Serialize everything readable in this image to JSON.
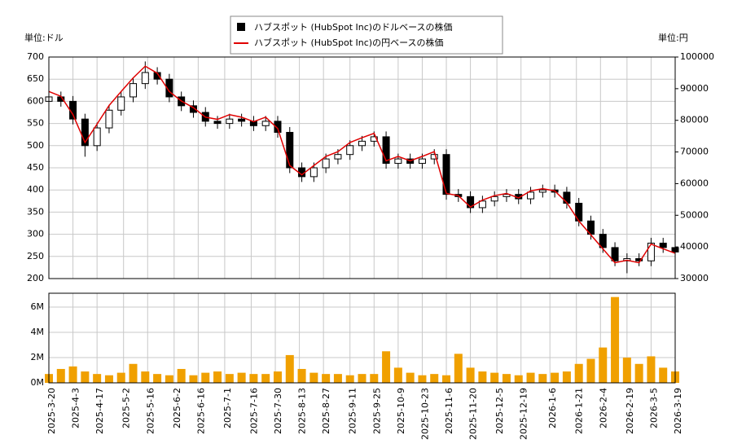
{
  "chart_data": {
    "type": "candlestick",
    "unit_left": "単位:ドル",
    "unit_right": "単位:円",
    "x": [
      "2025-03-20",
      "2025-03-27",
      "2025-04-03",
      "2025-04-10",
      "2025-04-17",
      "2025-04-24",
      "2025-05-01",
      "2025-05-08",
      "2025-05-15",
      "2025-05-22",
      "2025-05-29",
      "2025-06-05",
      "2025-06-12",
      "2025-06-19",
      "2025-06-26",
      "2025-07-03",
      "2025-07-10",
      "2025-07-17",
      "2025-07-24",
      "2025-07-31",
      "2025-08-07",
      "2025-08-14",
      "2025-08-21",
      "2025-08-28",
      "2025-09-04",
      "2025-09-11",
      "2025-09-18",
      "2025-09-25",
      "2025-10-02",
      "2025-10-09",
      "2025-10-16",
      "2025-10-23",
      "2025-10-30",
      "2025-11-06",
      "2025-11-13",
      "2025-11-20",
      "2025-11-27",
      "2025-12-04",
      "2025-12-11",
      "2025-12-18",
      "2025-12-25",
      "2026-01-01",
      "2026-01-08",
      "2026-01-15",
      "2026-01-22",
      "2026-01-29",
      "2026-02-05",
      "2026-02-12",
      "2026-02-19",
      "2026-02-26",
      "2026-03-05",
      "2026-03-12",
      "2026-03-19"
    ],
    "xlim": [
      "2025-03-20",
      "2026-03-19"
    ],
    "xticks": [
      {
        "value": "2025-03-20",
        "label": "2025-3-20"
      },
      {
        "value": "2025-04-03",
        "label": "2025-4-3"
      },
      {
        "value": "2025-04-17",
        "label": "2025-4-17"
      },
      {
        "value": "2025-05-02",
        "label": "2025-5-2"
      },
      {
        "value": "2025-05-16",
        "label": "2025-5-16"
      },
      {
        "value": "2025-06-02",
        "label": "2025-6-2"
      },
      {
        "value": "2025-06-16",
        "label": "2025-6-16"
      },
      {
        "value": "2025-07-01",
        "label": "2025-7-1"
      },
      {
        "value": "2025-07-16",
        "label": "2025-7-16"
      },
      {
        "value": "2025-07-30",
        "label": "2025-7-30"
      },
      {
        "value": "2025-08-13",
        "label": "2025-8-13"
      },
      {
        "value": "2025-08-27",
        "label": "2025-8-27"
      },
      {
        "value": "2025-09-11",
        "label": "2025-9-11"
      },
      {
        "value": "2025-09-25",
        "label": "2025-9-25"
      },
      {
        "value": "2025-10-09",
        "label": "2025-10-9"
      },
      {
        "value": "2025-10-23",
        "label": "2025-10-23"
      },
      {
        "value": "2025-11-06",
        "label": "2025-11-6"
      },
      {
        "value": "2025-11-20",
        "label": "2025-11-20"
      },
      {
        "value": "2025-12-05",
        "label": "2025-12-5"
      },
      {
        "value": "2025-12-19",
        "label": "2025-12-19"
      },
      {
        "value": "2026-01-06",
        "label": "2026-1-6"
      },
      {
        "value": "2026-01-21",
        "label": "2026-1-21"
      },
      {
        "value": "2026-02-04",
        "label": "2026-2-4"
      },
      {
        "value": "2026-02-19",
        "label": "2026-2-19"
      },
      {
        "value": "2026-03-05",
        "label": "2026-3-5"
      },
      {
        "value": "2026-03-19",
        "label": "2026-3-19"
      }
    ],
    "ylim": [
      200,
      700
    ],
    "yticks": [
      200,
      250,
      300,
      350,
      400,
      450,
      500,
      550,
      600,
      650,
      700
    ],
    "y2lim": [
      30000,
      100000
    ],
    "y2ticks": [
      30000,
      40000,
      50000,
      60000,
      70000,
      80000,
      90000,
      100000
    ],
    "grid": true,
    "series": [
      {
        "name": "ハブスポット (HubSpot Inc)のドルベースの株価",
        "color": "#000000",
        "open": [
          600,
          610,
          600,
          560,
          500,
          540,
          580,
          610,
          640,
          665,
          650,
          610,
          590,
          575,
          555,
          550,
          560,
          555,
          545,
          555,
          530,
          450,
          430,
          450,
          470,
          480,
          500,
          510,
          520,
          460,
          470,
          460,
          470,
          480,
          390,
          385,
          360,
          375,
          385,
          390,
          380,
          395,
          400,
          395,
          370,
          330,
          300,
          270,
          240,
          245,
          240,
          280,
          270
        ],
        "high": [
          622,
          622,
          612,
          572,
          552,
          592,
          622,
          652,
          690,
          677,
          662,
          622,
          602,
          587,
          567,
          572,
          572,
          567,
          567,
          567,
          542,
          462,
          462,
          482,
          492,
          512,
          522,
          532,
          532,
          482,
          482,
          482,
          492,
          492,
          402,
          397,
          387,
          397,
          402,
          402,
          407,
          412,
          412,
          407,
          382,
          342,
          312,
          282,
          257,
          257,
          292,
          292,
          282
        ],
        "low": [
          588,
          588,
          548,
          475,
          488,
          528,
          568,
          598,
          628,
          638,
          598,
          578,
          563,
          543,
          538,
          538,
          543,
          533,
          533,
          518,
          438,
          418,
          418,
          438,
          458,
          468,
          488,
          498,
          448,
          448,
          448,
          448,
          458,
          378,
          373,
          348,
          348,
          363,
          373,
          368,
          368,
          383,
          383,
          358,
          318,
          288,
          258,
          228,
          212,
          228,
          228,
          258,
          248
        ],
        "close": [
          610,
          600,
          560,
          500,
          540,
          580,
          610,
          640,
          665,
          650,
          610,
          590,
          575,
          555,
          550,
          560,
          555,
          545,
          555,
          530,
          450,
          430,
          450,
          470,
          480,
          500,
          510,
          520,
          460,
          470,
          460,
          470,
          480,
          390,
          385,
          360,
          375,
          385,
          390,
          380,
          395,
          400,
          395,
          370,
          330,
          300,
          270,
          240,
          245,
          240,
          280,
          270,
          260
        ]
      },
      {
        "name": "ハブスポット (HubSpot Inc)の円ベースの株価",
        "color": "#e00000",
        "axis": "y2",
        "values": [
          89100,
          87600,
          81800,
          73000,
          78800,
          84700,
          89100,
          93400,
          97100,
          94900,
          89100,
          86100,
          84000,
          81000,
          80300,
          81800,
          81000,
          79600,
          81000,
          77400,
          65700,
          62800,
          65700,
          68600,
          70100,
          73000,
          74500,
          75900,
          67200,
          68600,
          67200,
          68600,
          70100,
          56900,
          56200,
          52600,
          54800,
          56200,
          56900,
          55500,
          57700,
          58400,
          57700,
          54000,
          48200,
          43800,
          39400,
          35000,
          35800,
          35000,
          40900,
          39400,
          38000
        ]
      }
    ],
    "volume": {
      "color": "#f0a000",
      "values": [
        700000,
        1100000,
        1300000,
        900000,
        700000,
        600000,
        800000,
        1500000,
        900000,
        700000,
        600000,
        1100000,
        600000,
        800000,
        900000,
        700000,
        800000,
        700000,
        700000,
        900000,
        2200000,
        1100000,
        800000,
        700000,
        700000,
        600000,
        700000,
        700000,
        2500000,
        1200000,
        800000,
        600000,
        700000,
        600000,
        2300000,
        1200000,
        900000,
        800000,
        700000,
        600000,
        800000,
        700000,
        800000,
        900000,
        1500000,
        1900000,
        2800000,
        6800000,
        2000000,
        1500000,
        2100000,
        1200000,
        900000
      ],
      "ylim": [
        0,
        7100000
      ],
      "yticks": [
        {
          "value": 0,
          "label": "0M"
        },
        {
          "value": 2000000,
          "label": "2M"
        },
        {
          "value": 4000000,
          "label": "4M"
        },
        {
          "value": 6000000,
          "label": "6M"
        }
      ]
    }
  }
}
